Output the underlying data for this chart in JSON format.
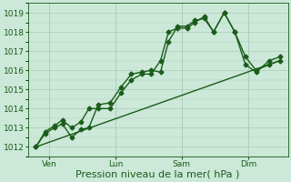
{
  "bg_color": "#cce8d8",
  "grid_color": "#aaccbb",
  "line_color": "#1a5c1a",
  "xlabel": "Pression niveau de la mer( hPa )",
  "xlabel_fontsize": 8,
  "ylim": [
    1011.5,
    1019.5
  ],
  "yticks": [
    1012,
    1013,
    1014,
    1015,
    1016,
    1017,
    1018,
    1019
  ],
  "tick_labelsize": 6.5,
  "x_tick_labels": [
    "Ven",
    "Lun",
    "Sam",
    "Dim"
  ],
  "x_tick_positions": [
    0.5,
    3.0,
    5.5,
    8.0
  ],
  "xlim": [
    -0.3,
    9.5
  ],
  "series1_x": [
    0.0,
    0.35,
    0.7,
    1.0,
    1.35,
    1.7,
    2.0,
    2.35,
    2.8,
    3.2,
    3.6,
    4.0,
    4.35,
    4.7,
    5.0,
    5.35,
    5.7,
    6.0,
    6.35,
    6.7,
    7.1,
    7.5,
    7.9,
    8.3,
    8.8,
    9.2
  ],
  "series1_y": [
    1012.0,
    1012.7,
    1013.0,
    1013.2,
    1012.5,
    1012.9,
    1013.0,
    1014.2,
    1014.3,
    1015.1,
    1015.8,
    1015.9,
    1016.0,
    1015.9,
    1017.5,
    1018.3,
    1018.3,
    1018.6,
    1018.7,
    1018.0,
    1019.0,
    1018.0,
    1016.7,
    1016.0,
    1016.3,
    1016.5
  ],
  "series2_x": [
    0.0,
    0.35,
    0.7,
    1.0,
    1.35,
    1.7,
    2.0,
    2.35,
    2.8,
    3.2,
    3.6,
    4.0,
    4.35,
    4.7,
    5.0,
    5.35,
    5.7,
    6.0,
    6.35,
    6.7,
    7.1,
    7.5,
    7.9,
    8.3,
    8.8,
    9.2
  ],
  "series2_y": [
    1012.0,
    1012.8,
    1013.1,
    1013.4,
    1013.0,
    1013.3,
    1014.0,
    1014.0,
    1014.0,
    1014.8,
    1015.5,
    1015.8,
    1015.8,
    1016.5,
    1018.0,
    1018.2,
    1018.2,
    1018.5,
    1018.8,
    1018.0,
    1019.0,
    1018.0,
    1016.3,
    1015.9,
    1016.5,
    1016.7
  ],
  "trend_x": [
    0.0,
    9.2
  ],
  "trend_y": [
    1012.0,
    1016.5
  ],
  "marker": "D",
  "markersize": 2.5,
  "linewidth": 1.0
}
